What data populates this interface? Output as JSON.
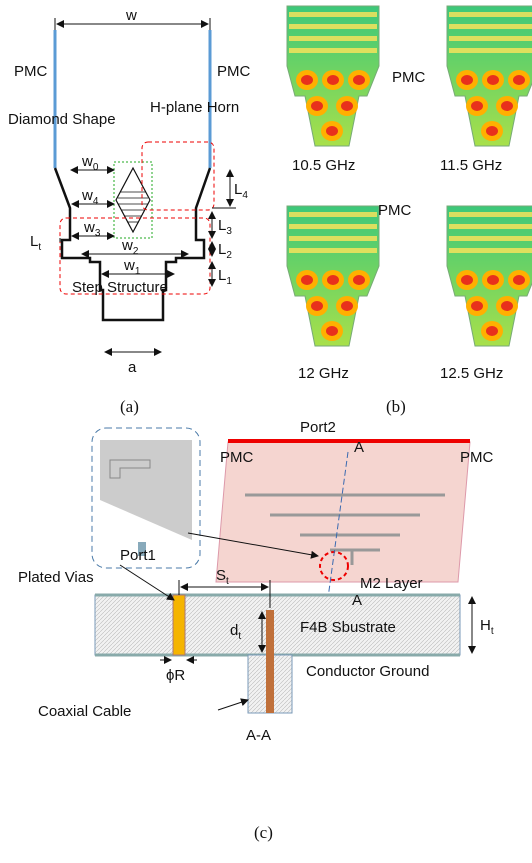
{
  "panel_a": {
    "caption": "(a)",
    "w": "w",
    "pmc_left": "PMC",
    "pmc_right": "PMC",
    "diamond": "Diamond Shape",
    "horn": "H-plane Horn",
    "w0": {
      "base": "w",
      "sub": "0"
    },
    "w4": {
      "base": "w",
      "sub": "4"
    },
    "w3": {
      "base": "w",
      "sub": "3"
    },
    "L4": {
      "base": "L",
      "sub": "4"
    },
    "L3": {
      "base": "L",
      "sub": "3"
    },
    "Lt": {
      "base": "L",
      "sub": "t"
    },
    "w2": {
      "base": "w",
      "sub": "2"
    },
    "L2": {
      "base": "L",
      "sub": "2"
    },
    "w1": {
      "base": "w",
      "sub": "1"
    },
    "L1": {
      "base": "L",
      "sub": "1"
    },
    "step": "Step Structure",
    "a": "a"
  },
  "panel_b": {
    "caption": "(b)",
    "pmc_top": "PMC",
    "pmc_bottom": "PMC",
    "freqs": [
      "10.5 GHz",
      "11.5 GHz",
      "12 GHz",
      "12.5 GHz"
    ]
  },
  "panel_c": {
    "caption": "(c)",
    "section_top": "A",
    "section_bottom": "A",
    "pmc_left": "PMC",
    "port2": "Port2",
    "pmc_right": "PMC",
    "port1": "Port1",
    "vias": "Plated Vias",
    "St": {
      "base": "S",
      "sub": "t"
    },
    "m2": "M2 Layer",
    "Ht": {
      "base": "H",
      "sub": "t"
    },
    "dt": {
      "base": "d",
      "sub": "t"
    },
    "substrate": "F4B Sbustrate",
    "phiR": "ϕR",
    "ground": "Conductor Ground",
    "coax": "Coaxial Cable",
    "aa": "A-A"
  }
}
